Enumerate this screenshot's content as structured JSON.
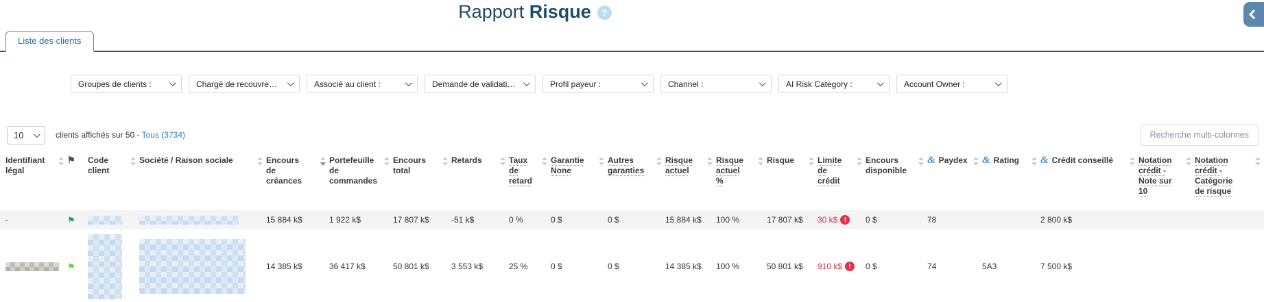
{
  "header": {
    "title_regular": "Rapport",
    "title_bold": "Risque",
    "help_icon": "?"
  },
  "tab": {
    "label": "Liste des clients"
  },
  "filters": [
    {
      "id": "groupes-de-clients",
      "label": "Groupes de clients :"
    },
    {
      "id": "charge-de-recouvrement",
      "label": "Chargé de recouvrement :"
    },
    {
      "id": "associe-au-client",
      "label": "Associé au client :"
    },
    {
      "id": "demande-de-validation",
      "label": "Demande de validation de l..."
    },
    {
      "id": "profil-payeur",
      "label": "Profil payeur :"
    },
    {
      "id": "channel",
      "label": "Channel :"
    },
    {
      "id": "ai-risk-category",
      "label": "AI Risk Category :"
    },
    {
      "id": "account-owner",
      "label": "Account Owner :"
    }
  ],
  "toolbar": {
    "page_size": "10",
    "summary_text": "clients affichés sur 50 - ",
    "summary_link": "Tous (3734)",
    "multi_search_label": "Recherche multi-colonnes"
  },
  "colors": {
    "accent_blue": "#2b7cba",
    "tab_line_blue": "#1f5d8e",
    "alert_red": "#e0314e",
    "flag_green_row1": "#1fa05c",
    "flag_green_row2": "#55dd3a",
    "zebra_row": "#f4f4f4"
  },
  "table": {
    "alert_badge": "!",
    "columns": [
      {
        "id": "identifiant_legal",
        "label": "Identifiant\nlégal",
        "sortable": true
      },
      {
        "id": "flag",
        "label": "",
        "sortable": false,
        "header_icon": "flag"
      },
      {
        "id": "code_client",
        "label": "Code\nclient",
        "sortable": true
      },
      {
        "id": "societe",
        "label": "Société / Raison sociale",
        "sortable": true
      },
      {
        "id": "encours_creances",
        "label": "Encours\nde\ncréances",
        "sortable": true,
        "sorted": "desc"
      },
      {
        "id": "portefeuille_commandes",
        "label": "Portefeuille\nde\ncommandes",
        "sortable": true
      },
      {
        "id": "encours_total",
        "label": "Encours\ntotal",
        "sortable": true
      },
      {
        "id": "retards",
        "label": "Retards",
        "sortable": true
      },
      {
        "id": "taux_retard",
        "label": "Taux\nde\nretard",
        "sortable": true,
        "dotted": true
      },
      {
        "id": "garantie_none",
        "label": "Garantie\nNone",
        "sortable": true,
        "dotted": true
      },
      {
        "id": "autres_garanties",
        "label": "Autres\ngaranties",
        "sortable": true,
        "dotted": true
      },
      {
        "id": "risque_actuel",
        "label": "Risque\nactuel",
        "sortable": true,
        "dotted": true
      },
      {
        "id": "risque_actuel_pct",
        "label": "Risque\nactuel\n%",
        "sortable": true,
        "dotted": true
      },
      {
        "id": "risque",
        "label": "Risque",
        "sortable": true
      },
      {
        "id": "limite_credit",
        "label": "Limite\nde\ncrédit",
        "sortable": true,
        "dotted": true
      },
      {
        "id": "encours_disponible",
        "label": "Encours\ndisponible",
        "sortable": true
      },
      {
        "id": "paydex",
        "label": "Paydex",
        "sortable": true,
        "dnb": true
      },
      {
        "id": "rating",
        "label": "Rating",
        "sortable": true,
        "dnb": true
      },
      {
        "id": "credit_conseille",
        "label": "Crédit conseillé",
        "sortable": true,
        "dnb": true
      },
      {
        "id": "notation_note",
        "label": "Notation\ncrédit -\nNote sur\n10",
        "sortable": true,
        "dotted": true
      },
      {
        "id": "notation_categorie",
        "label": "Notation\ncrédit -\nCatégorie\nde risque",
        "sortable": true,
        "dotted": true
      }
    ],
    "rows": [
      {
        "zebra": true,
        "flag_color": "#1fa05c",
        "cells": [
          {
            "text": "-"
          },
          {
            "flag": true
          },
          {
            "redacted": "blue"
          },
          {
            "redacted": "blue"
          },
          {
            "text": "15 884 k$"
          },
          {
            "text": "1 922 k$"
          },
          {
            "text": "17 807 k$"
          },
          {
            "text": "-51 k$"
          },
          {
            "text": "0 %"
          },
          {
            "text": "0 $"
          },
          {
            "text": "0 $"
          },
          {
            "text": "15 884 k$"
          },
          {
            "text": "100 %"
          },
          {
            "text": "17 807 k$"
          },
          {
            "text": "30 k$",
            "alert": true
          },
          {
            "text": "0 $"
          },
          {
            "text": "78"
          },
          {
            "text": ""
          },
          {
            "text": "2 800 k$"
          },
          {
            "text": ""
          },
          {
            "text": ""
          }
        ]
      },
      {
        "zebra": false,
        "flag_color": "#55dd3a",
        "cells": [
          {
            "redacted": "gray"
          },
          {
            "flag": true
          },
          {
            "redacted": "blue"
          },
          {
            "redacted": "blue"
          },
          {
            "text": "14 385 k$"
          },
          {
            "text": "36 417 k$"
          },
          {
            "text": "50 801 k$"
          },
          {
            "text": "3 553 k$"
          },
          {
            "text": "25 %"
          },
          {
            "text": "0 $"
          },
          {
            "text": "0 $"
          },
          {
            "text": "14 385 k$"
          },
          {
            "text": "100 %"
          },
          {
            "text": "50 801 k$"
          },
          {
            "text": "910 k$",
            "alert": true
          },
          {
            "text": "0 $"
          },
          {
            "text": "74"
          },
          {
            "text": "5A3"
          },
          {
            "text": "7 500 k$"
          },
          {
            "text": ""
          },
          {
            "text": ""
          }
        ]
      }
    ]
  }
}
